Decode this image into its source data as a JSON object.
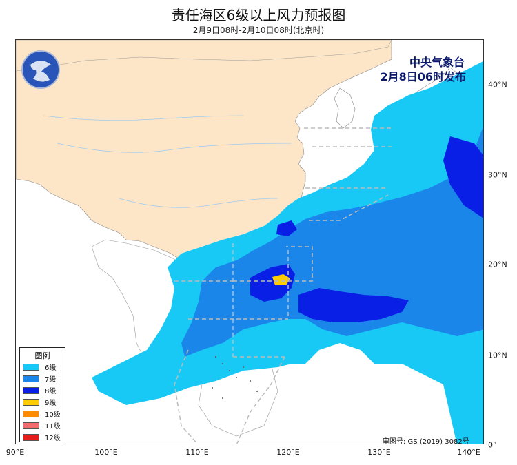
{
  "title": "责任海区6级以上风力预报图",
  "subtitle": "2月9日08时-2月10日08时(北京时)",
  "agency": "中央气象台",
  "issued": "2月8日06时发布",
  "approval_number": "审图号: GS (2019) 3082号",
  "legend": {
    "title": "图例",
    "items": [
      {
        "label": "6级",
        "color": "#19c9f5"
      },
      {
        "label": "7级",
        "color": "#1a86ea"
      },
      {
        "label": "8级",
        "color": "#0a1fe6"
      },
      {
        "label": "9级",
        "color": "#ffcc00"
      },
      {
        "label": "10级",
        "color": "#ff8c00"
      },
      {
        "label": "11级",
        "color": "#f26b6b"
      },
      {
        "label": "12级",
        "color": "#e51c1c"
      }
    ]
  },
  "axes": {
    "x_ticks": [
      "90°E",
      "100°E",
      "110°E",
      "120°E",
      "130°E",
      "140°E"
    ],
    "y_ticks": [
      "40°N",
      "30°N",
      "20°N",
      "10°N",
      "0°"
    ]
  },
  "colors": {
    "land": "#fde6c8",
    "sea": "#ffffff",
    "dashed_boundary": "#bbbbbb"
  }
}
